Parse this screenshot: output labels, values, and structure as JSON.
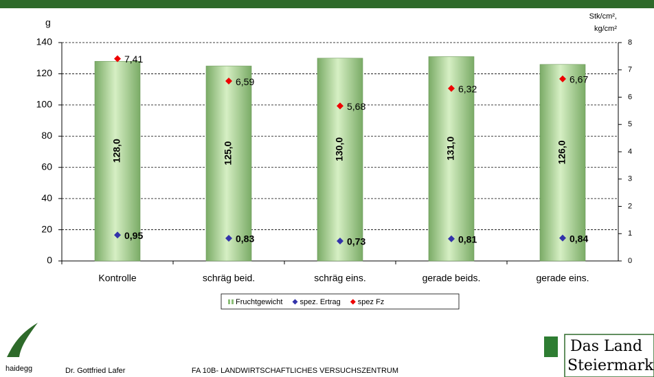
{
  "chart_data": {
    "type": "bar",
    "ylabel": "g",
    "y2label": [
      "Stk/cm²,",
      "kg/cm²"
    ],
    "categories": [
      "Kontrolle",
      "schräg beid.",
      "schräg eins.",
      "gerade beids.",
      "gerade eins."
    ],
    "series": [
      {
        "name": "Fruchtgewicht",
        "color": "#8cbf78",
        "type": "bar",
        "values": [
          128,
          125,
          130,
          131,
          126
        ],
        "value_labels": [
          "128,0",
          "125,0",
          "130,0",
          "131,0",
          "126,0"
        ]
      },
      {
        "name": "spez. Ertrag",
        "color": "#3333aa",
        "type": "marker",
        "axis": "y2",
        "values": [
          0.95,
          0.83,
          0.73,
          0.81,
          0.84
        ],
        "value_labels": [
          "0,95",
          "0,83",
          "0,73",
          "0,81",
          "0,84"
        ]
      },
      {
        "name": "spez Fz",
        "color": "#ee0000",
        "type": "marker",
        "axis": "y2",
        "values": [
          7.41,
          6.59,
          5.68,
          6.32,
          6.67
        ],
        "value_labels": [
          "7,41",
          "6,59",
          "5,68",
          "6,32",
          "6,67"
        ]
      }
    ],
    "ylim": [
      0,
      140
    ],
    "yticks": [
      0,
      20,
      40,
      60,
      80,
      100,
      120,
      140
    ],
    "y2lim": [
      0,
      8
    ],
    "y2ticks": [
      0,
      1,
      2,
      3,
      4,
      5,
      6,
      7,
      8
    ],
    "grid": true
  },
  "footer": {
    "logo": "haidegg",
    "author": "Dr. Gottfried Lafer",
    "institute": "FA 10B- LANDWIRTSCHAFTLICHES VERSUCHSZENTRUM",
    "brand": [
      "Das Land",
      "Steiermark"
    ]
  }
}
